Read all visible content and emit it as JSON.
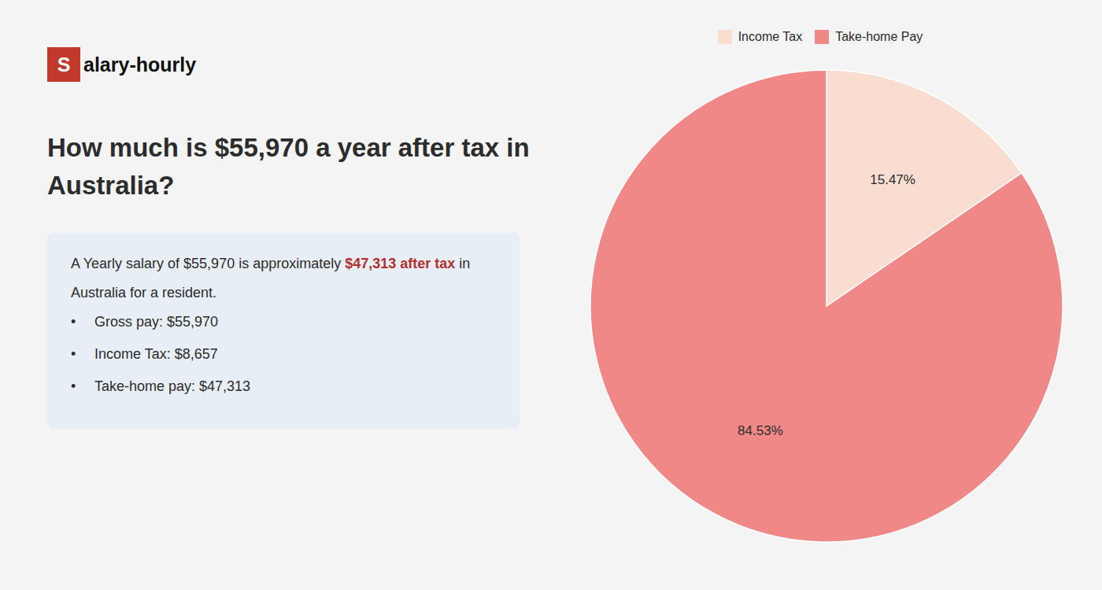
{
  "chart_data": {
    "type": "pie",
    "title": "How much is $55,970 a year after tax in Australia?",
    "categories": [
      "Income Tax",
      "Take-home Pay"
    ],
    "values": [
      15.47,
      84.53
    ],
    "value_labels": [
      "15.47%",
      "84.53%"
    ],
    "colors": [
      "#f8ddd0",
      "#f08888"
    ],
    "data_labels": true,
    "legend": "top",
    "annotations": [
      {
        "segments": [
          {
            "text": "S",
            "color": "#c0392b"
          },
          {
            "text": "alary-hourly"
          }
        ]
      },
      {
        "segments": [
          {
            "text": "A Yearly salary of $55,970 is approximately "
          },
          {
            "text": "$47,313 after tax",
            "color": "#b03030"
          },
          {
            "text": " in"
          }
        ]
      },
      {
        "segments": [
          {
            "text": "Australia for a resident."
          }
        ]
      },
      {
        "bullet": "•",
        "text": "Gross pay: $55,970"
      },
      {
        "bullet": "•",
        "text": "Income Tax: $8,657"
      },
      {
        "bullet": "•",
        "text": "Take-home pay: $47,313"
      }
    ]
  }
}
